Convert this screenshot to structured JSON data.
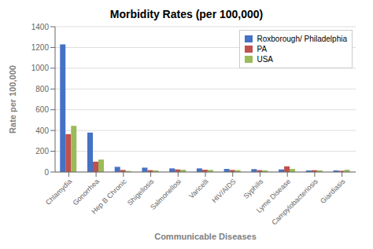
{
  "chart_data": {
    "type": "bar",
    "title": "Morbidity Rates (per 100,000)",
    "xlabel": "Communicable Diseases",
    "ylabel": "Rate per 100,000",
    "categories": [
      "Chlamydia",
      "Gonorrhea",
      "Hep B Chronic",
      "Shigellosis",
      "Salmonellosi",
      "Varicelli",
      "HIV/AIDS",
      "Syphilis",
      "Lyme Disease",
      "Campylobacteriosis",
      "Giardiasis"
    ],
    "series": [
      {
        "name": "Roxborough/ Philadelphia",
        "color": "#4472C4",
        "values": [
          1230,
          380,
          50,
          42,
          35,
          35,
          30,
          28,
          25,
          15,
          15
        ]
      },
      {
        "name": "PA",
        "color": "#C0504D",
        "values": [
          365,
          100,
          20,
          18,
          25,
          22,
          20,
          18,
          55,
          18,
          12
        ]
      },
      {
        "name": "USA",
        "color": "#9BBB59",
        "values": [
          445,
          120,
          10,
          15,
          22,
          20,
          18,
          15,
          30,
          16,
          22
        ]
      }
    ],
    "ylim": [
      0,
      1400
    ],
    "yticks": [
      0,
      200,
      400,
      600,
      800,
      1000,
      1200,
      1400
    ],
    "grid": true,
    "legend": "upper right"
  }
}
